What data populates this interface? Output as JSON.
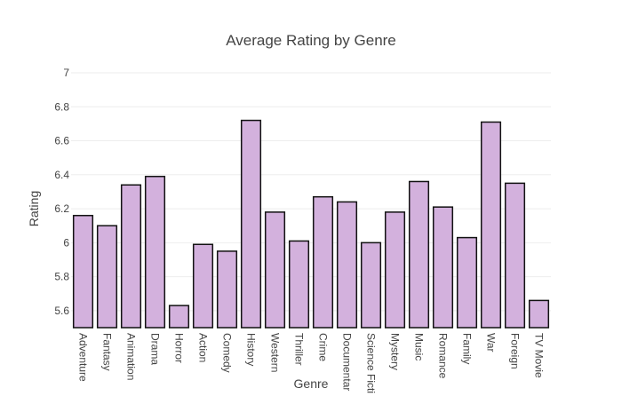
{
  "chart_data": {
    "type": "bar",
    "title": "Average Rating by Genre",
    "xlabel": "Genre",
    "ylabel": "Rating",
    "categories": [
      "Adventure",
      "Fantasy",
      "Animation",
      "Drama",
      "Horror",
      "Action",
      "Comedy",
      "History",
      "Western",
      "Thriller",
      "Crime",
      "Documentar",
      "Science Ficti",
      "Mystery",
      "Music",
      "Romance",
      "Family",
      "War",
      "Foreign",
      "TV Movie"
    ],
    "values": [
      6.16,
      6.1,
      6.34,
      6.39,
      5.63,
      5.99,
      5.95,
      6.72,
      6.18,
      6.01,
      6.27,
      6.24,
      6.0,
      6.18,
      6.36,
      6.21,
      6.03,
      6.71,
      6.35,
      5.66
    ],
    "ylim": [
      5.5,
      7.0
    ],
    "yticks": [
      "5.6",
      "5.8",
      "6",
      "6.2",
      "6.4",
      "6.6",
      "6.8",
      "7"
    ],
    "grid": true,
    "colors": {
      "bar_fill": "#d3b1dd",
      "bar_stroke": "#111111",
      "grid": "#eeeeee",
      "text": "#444444"
    }
  }
}
